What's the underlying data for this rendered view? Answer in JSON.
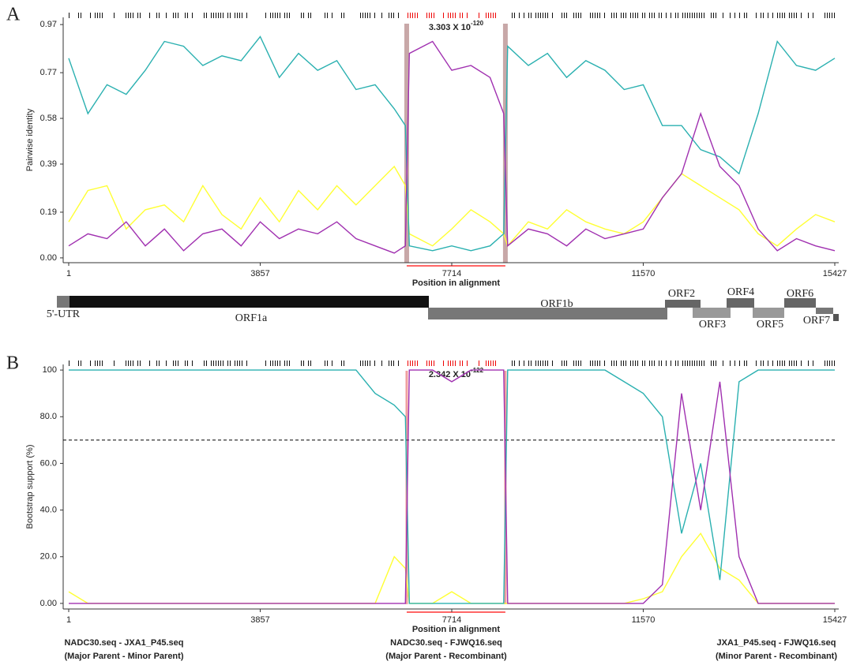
{
  "panels": [
    "A",
    "B"
  ],
  "genome_map": {
    "labels": [
      "5'-UTR",
      "ORF1a",
      "ORF1b",
      "ORF2",
      "ORF3",
      "ORF4",
      "ORF5",
      "ORF6",
      "ORF7"
    ]
  },
  "chart_data": [
    {
      "type": "line",
      "ylabel": "Pairwise identity",
      "xlabel": "Position in alignment",
      "annotation": {
        "text": "3.303 X 10",
        "exponent": "-120"
      },
      "recombination_region": [
        6807,
        8794
      ],
      "xlim": [
        1,
        15427
      ],
      "xticks": [
        1,
        3857,
        7714,
        11570,
        15427
      ],
      "ylim": [
        -0.02,
        1.0
      ],
      "yticks": [
        {
          "value": 0,
          "label": "0.00"
        },
        0.19,
        0.39,
        0.58,
        0.77,
        0.97
      ],
      "x": [
        1,
        387,
        772,
        1158,
        1544,
        1929,
        2315,
        2701,
        3086,
        3472,
        3857,
        4243,
        4629,
        5014,
        5400,
        5786,
        6171,
        6557,
        6780,
        6860,
        7328,
        7714,
        8100,
        8485,
        8760,
        8840,
        9257,
        9642,
        10028,
        10414,
        10799,
        11185,
        11570,
        11956,
        12342,
        12727,
        13113,
        13499,
        13884,
        14270,
        14656,
        15041,
        15427
      ],
      "series": [
        {
          "color": "#ffff33",
          "values": [
            0.15,
            0.28,
            0.3,
            0.12,
            0.2,
            0.22,
            0.15,
            0.3,
            0.18,
            0.12,
            0.25,
            0.15,
            0.28,
            0.2,
            0.3,
            0.22,
            0.3,
            0.38,
            0.3,
            0.1,
            0.05,
            0.12,
            0.2,
            0.15,
            0.1,
            0.05,
            0.15,
            0.12,
            0.2,
            0.15,
            0.12,
            0.1,
            0.15,
            0.25,
            0.35,
            0.3,
            0.25,
            0.2,
            0.1,
            0.05,
            0.12,
            0.18,
            0.15
          ]
        },
        {
          "color": "#2ab0b0",
          "values": [
            0.83,
            0.6,
            0.72,
            0.68,
            0.78,
            0.9,
            0.88,
            0.8,
            0.84,
            0.82,
            0.92,
            0.75,
            0.85,
            0.78,
            0.82,
            0.7,
            0.72,
            0.62,
            0.55,
            0.05,
            0.03,
            0.05,
            0.03,
            0.05,
            0.1,
            0.88,
            0.8,
            0.85,
            0.75,
            0.82,
            0.78,
            0.7,
            0.72,
            0.55,
            0.55,
            0.45,
            0.42,
            0.35,
            0.6,
            0.9,
            0.8,
            0.78,
            0.83
          ]
        },
        {
          "color": "#a030b0",
          "values": [
            0.05,
            0.1,
            0.08,
            0.15,
            0.05,
            0.12,
            0.03,
            0.1,
            0.12,
            0.05,
            0.15,
            0.08,
            0.12,
            0.1,
            0.15,
            0.08,
            0.05,
            0.02,
            0.05,
            0.85,
            0.9,
            0.78,
            0.8,
            0.75,
            0.6,
            0.05,
            0.12,
            0.1,
            0.05,
            0.12,
            0.08,
            0.1,
            0.12,
            0.25,
            0.35,
            0.6,
            0.38,
            0.3,
            0.12,
            0.03,
            0.08,
            0.05,
            0.03
          ]
        }
      ]
    },
    {
      "type": "line",
      "ylabel": "Bootstrap support (%)",
      "xlabel": "Position in alignment",
      "annotation": {
        "text": "2.342 X 10",
        "exponent": "-122"
      },
      "recombination_region": [
        6807,
        8794
      ],
      "threshold": 70,
      "xlim": [
        1,
        15427
      ],
      "xticks": [
        1,
        3857,
        7714,
        11570,
        15427
      ],
      "ylim": [
        -2.4,
        102.4
      ],
      "yticks": [
        {
          "value": 0,
          "label": "0.00"
        },
        {
          "value": 20,
          "label": "20.0"
        },
        {
          "value": 40,
          "label": "40.0"
        },
        {
          "value": 60,
          "label": "60.0"
        },
        {
          "value": 80,
          "label": "80.0"
        },
        100
      ],
      "x": [
        1,
        387,
        772,
        1158,
        1544,
        1929,
        2315,
        2701,
        3086,
        3472,
        3857,
        4243,
        4629,
        5014,
        5400,
        5786,
        6171,
        6557,
        6780,
        6860,
        7328,
        7714,
        8100,
        8485,
        8760,
        8840,
        9257,
        9642,
        10028,
        10414,
        10799,
        11185,
        11570,
        11956,
        12342,
        12727,
        13113,
        13499,
        13884,
        14270,
        14656,
        15041,
        15427
      ],
      "series": [
        {
          "name": "NADC30.seq - JXA1_P45.seq",
          "role": "(Major Parent - Minor Parent)",
          "color": "#ffff33",
          "values": [
            5,
            0,
            0,
            0,
            0,
            0,
            0,
            0,
            0,
            0,
            0,
            0,
            0,
            0,
            0,
            0,
            0,
            20,
            15,
            0,
            0,
            5,
            0,
            0,
            0,
            0,
            0,
            0,
            0,
            0,
            0,
            0,
            2,
            5,
            20,
            30,
            15,
            10,
            0,
            0,
            0,
            0,
            0
          ]
        },
        {
          "name": "NADC30.seq - FJWQ16.seq",
          "role": "(Major Parent - Recombinant)",
          "color": "#2ab0b0",
          "values": [
            100,
            100,
            100,
            100,
            100,
            100,
            100,
            100,
            100,
            100,
            100,
            100,
            100,
            100,
            100,
            100,
            90,
            85,
            80,
            0,
            0,
            0,
            0,
            0,
            0,
            100,
            100,
            100,
            100,
            100,
            100,
            95,
            90,
            80,
            30,
            60,
            10,
            95,
            100,
            100,
            100,
            100,
            100
          ]
        },
        {
          "name": "JXA1_P45.seq - FJWQ16.seq",
          "role": "(Minor Parent - Recombinant)",
          "color": "#a030b0",
          "values": [
            0,
            0,
            0,
            0,
            0,
            0,
            0,
            0,
            0,
            0,
            0,
            0,
            0,
            0,
            0,
            0,
            0,
            0,
            0,
            100,
            100,
            95,
            100,
            100,
            100,
            0,
            0,
            0,
            0,
            0,
            0,
            0,
            0,
            8,
            90,
            40,
            95,
            20,
            0,
            0,
            0,
            0,
            0
          ]
        }
      ]
    }
  ]
}
